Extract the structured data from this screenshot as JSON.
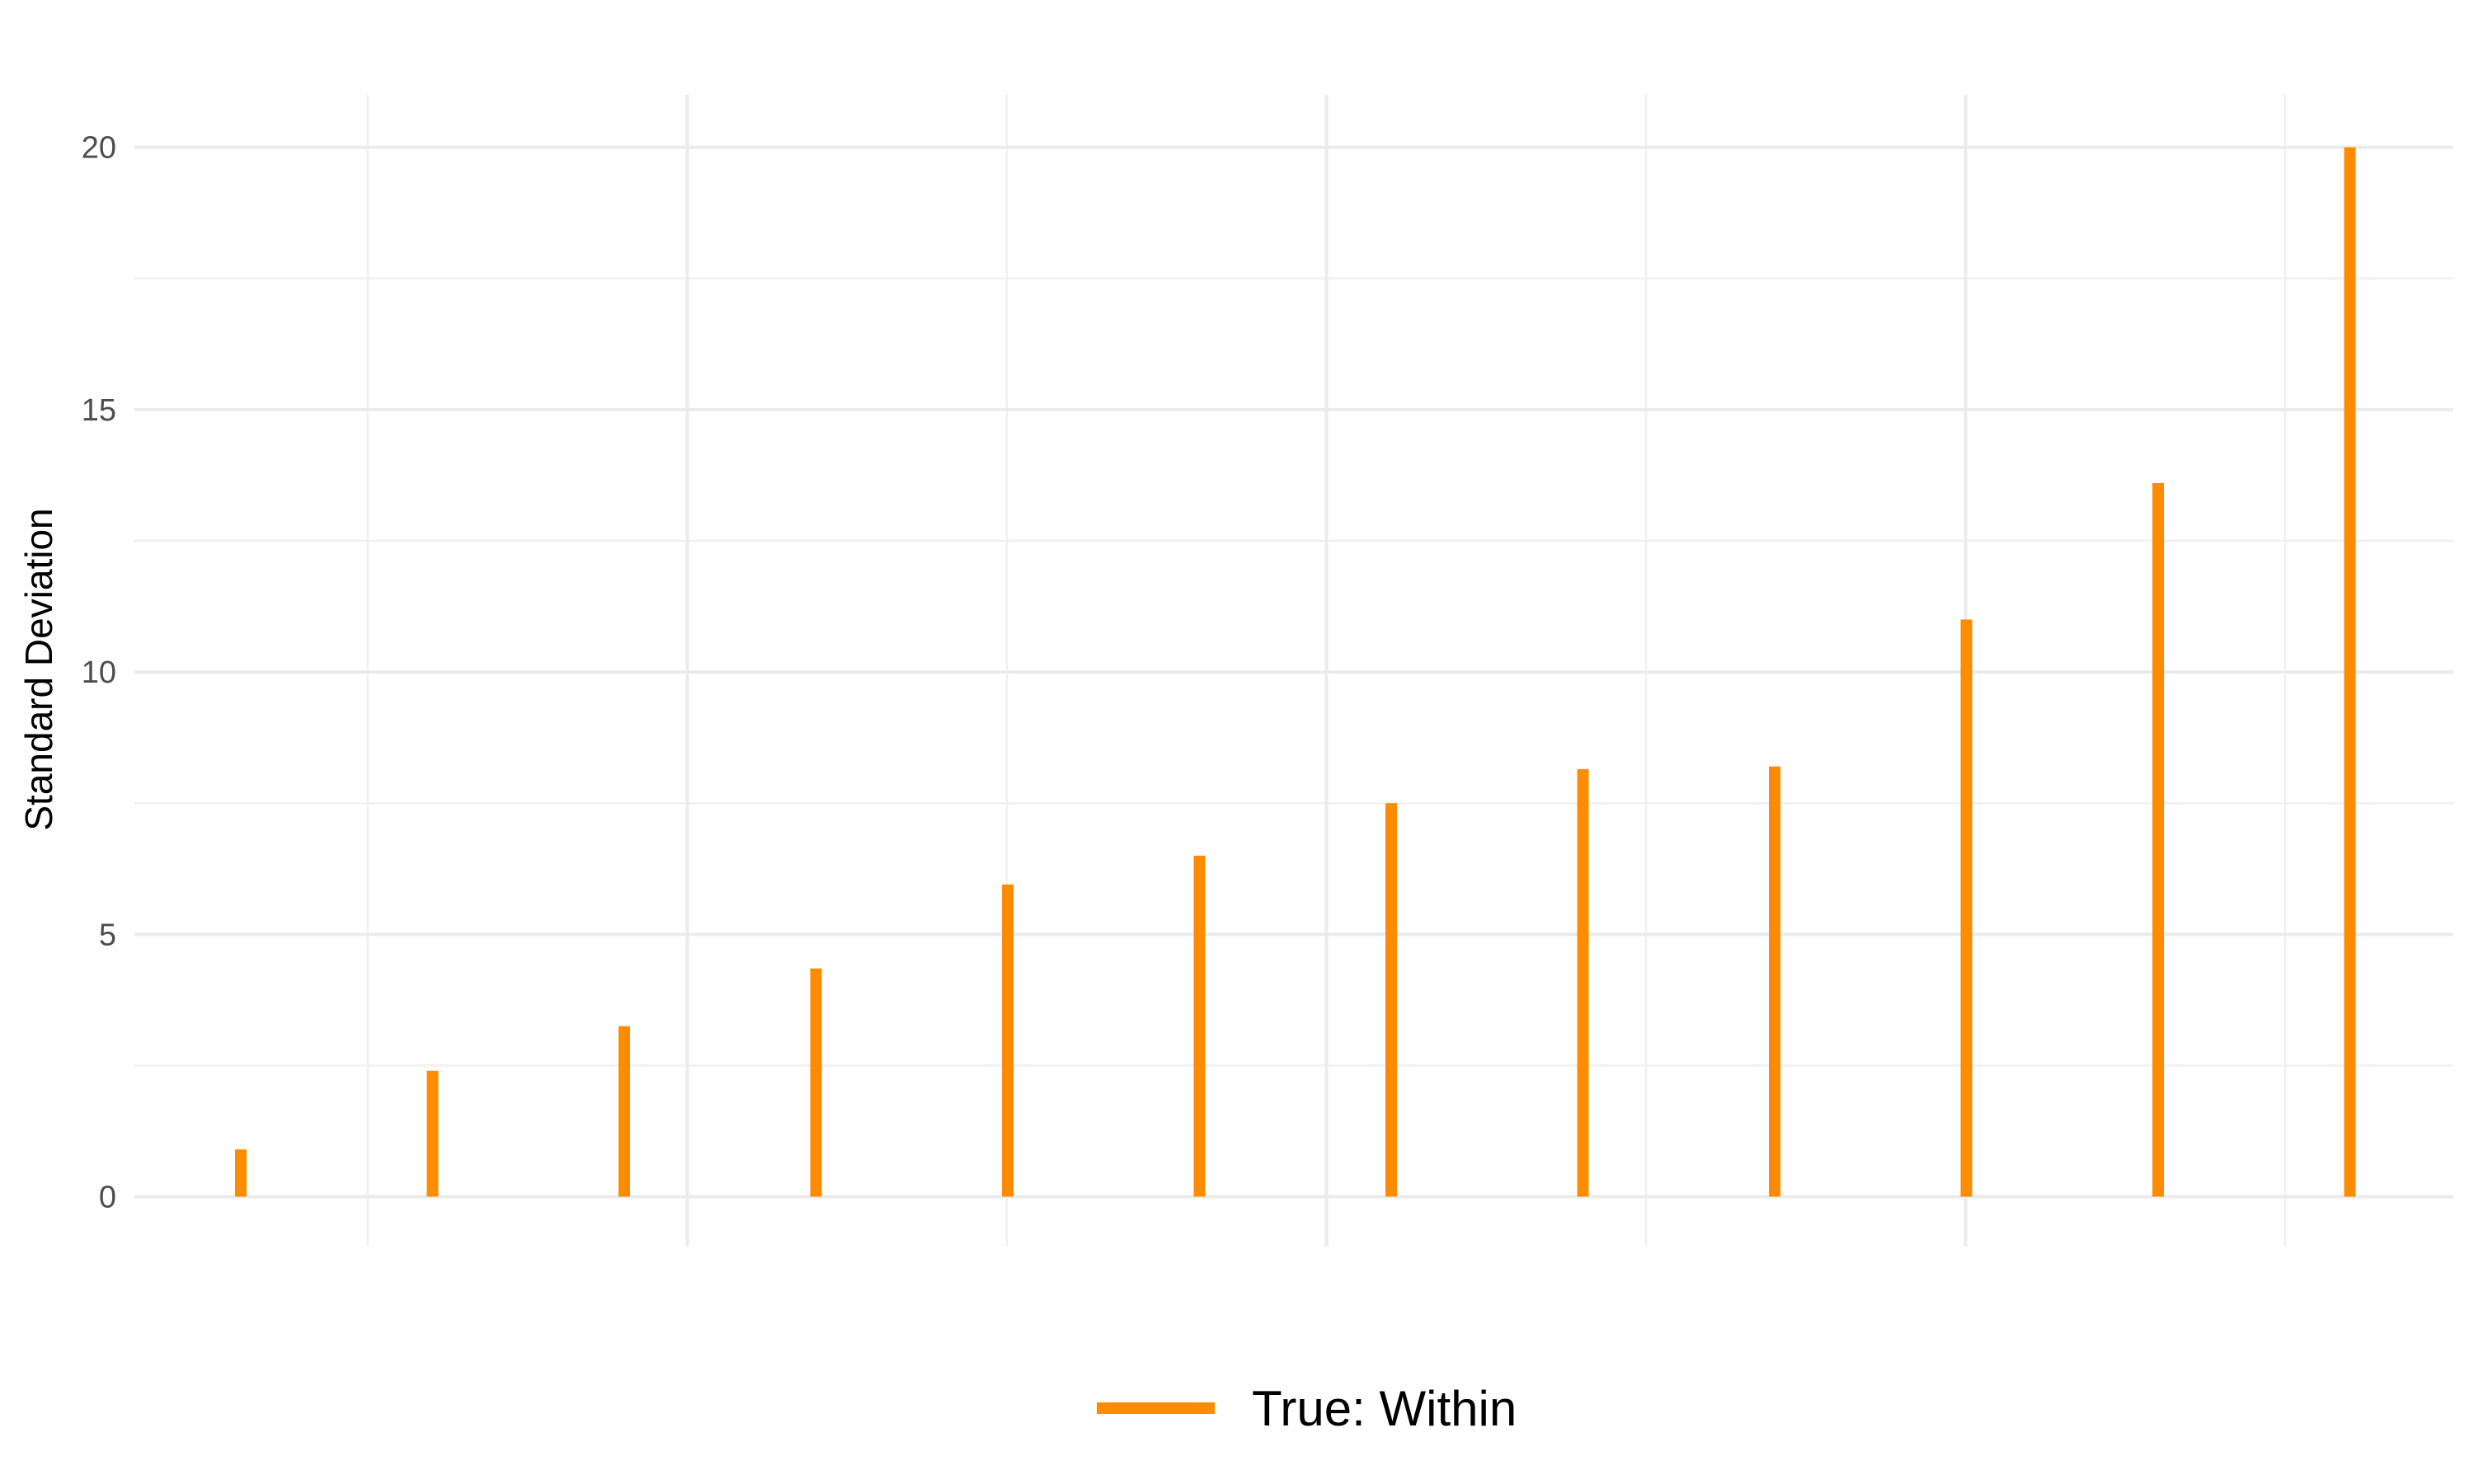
{
  "chart_data": {
    "type": "bar",
    "title": "",
    "xlabel": "",
    "ylabel": "Standard Deviation",
    "ylim": [
      -0.95,
      21
    ],
    "y_ticks": [
      0,
      5,
      10,
      15,
      20
    ],
    "y_tick_labels": [
      "0",
      "5",
      "10",
      "15",
      "20"
    ],
    "x_tick_labels_shown": false,
    "grid": true,
    "legend_position": "bottom",
    "series": [
      {
        "name": "True: Within",
        "color": "#FF8C00",
        "values": [
          0.9,
          2.4,
          3.25,
          4.35,
          5.95,
          6.5,
          7.5,
          8.15,
          8.2,
          11.0,
          13.6,
          20.0
        ]
      }
    ]
  }
}
